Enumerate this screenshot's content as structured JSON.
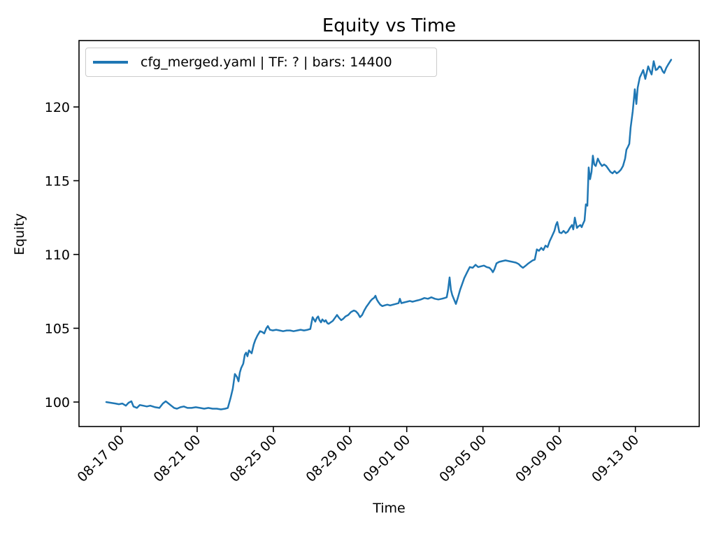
{
  "figure": {
    "title": "Equity vs Time",
    "background": "#ffffff"
  },
  "legend": {
    "label": "cfg_merged.yaml | TF: ? | bars: 14400",
    "line_color": "#1f77b4",
    "position": "upper left"
  },
  "chart_data": {
    "type": "line",
    "title": "Equity vs Time",
    "xlabel": "Time",
    "ylabel": "Equity",
    "grid": false,
    "legend_position": "upper left",
    "x_unit": "days since 08-17 00:00",
    "x_range": [
      -2.2,
      30.35
    ],
    "y_range": [
      98.34,
      124.5
    ],
    "x_ticks": [
      {
        "t": 0,
        "label": "08-17 00"
      },
      {
        "t": 4,
        "label": "08-21 00"
      },
      {
        "t": 8,
        "label": "08-25 00"
      },
      {
        "t": 12,
        "label": "08-29 00"
      },
      {
        "t": 15,
        "label": "09-01 00"
      },
      {
        "t": 19,
        "label": "09-05 00"
      },
      {
        "t": 23,
        "label": "09-09 00"
      },
      {
        "t": 27,
        "label": "09-13 00"
      }
    ],
    "y_ticks": [
      100,
      105,
      110,
      115,
      120
    ],
    "series": [
      {
        "name": "cfg_merged.yaml | TF: ? | bars: 14400",
        "color": "#1f77b4",
        "points": [
          [
            -0.77,
            100.0
          ],
          [
            -0.55,
            99.95
          ],
          [
            -0.29,
            99.9
          ],
          [
            -0.11,
            99.85
          ],
          [
            0.07,
            99.9
          ],
          [
            0.26,
            99.75
          ],
          [
            0.4,
            99.95
          ],
          [
            0.55,
            100.05
          ],
          [
            0.66,
            99.7
          ],
          [
            0.84,
            99.6
          ],
          [
            0.99,
            99.8
          ],
          [
            1.17,
            99.75
          ],
          [
            1.36,
            99.7
          ],
          [
            1.54,
            99.75
          ],
          [
            1.8,
            99.65
          ],
          [
            2.02,
            99.6
          ],
          [
            2.2,
            99.9
          ],
          [
            2.35,
            100.05
          ],
          [
            2.5,
            99.9
          ],
          [
            2.64,
            99.75
          ],
          [
            2.79,
            99.6
          ],
          [
            2.94,
            99.55
          ],
          [
            3.12,
            99.65
          ],
          [
            3.3,
            99.7
          ],
          [
            3.49,
            99.6
          ],
          [
            3.71,
            99.6
          ],
          [
            3.93,
            99.65
          ],
          [
            4.15,
            99.6
          ],
          [
            4.37,
            99.55
          ],
          [
            4.59,
            99.6
          ],
          [
            4.81,
            99.55
          ],
          [
            5.03,
            99.55
          ],
          [
            5.25,
            99.5
          ],
          [
            5.47,
            99.55
          ],
          [
            5.61,
            99.6
          ],
          [
            5.76,
            100.3
          ],
          [
            5.87,
            100.9
          ],
          [
            5.98,
            101.9
          ],
          [
            6.09,
            101.7
          ],
          [
            6.17,
            101.4
          ],
          [
            6.24,
            102.0
          ],
          [
            6.31,
            102.3
          ],
          [
            6.42,
            102.6
          ],
          [
            6.5,
            103.2
          ],
          [
            6.57,
            103.35
          ],
          [
            6.64,
            103.1
          ],
          [
            6.72,
            103.5
          ],
          [
            6.79,
            103.4
          ],
          [
            6.86,
            103.3
          ],
          [
            6.97,
            103.9
          ],
          [
            7.05,
            104.2
          ],
          [
            7.16,
            104.5
          ],
          [
            7.3,
            104.8
          ],
          [
            7.41,
            104.75
          ],
          [
            7.52,
            104.65
          ],
          [
            7.63,
            105.0
          ],
          [
            7.71,
            105.15
          ],
          [
            7.82,
            104.9
          ],
          [
            7.96,
            104.85
          ],
          [
            8.15,
            104.9
          ],
          [
            8.33,
            104.85
          ],
          [
            8.51,
            104.8
          ],
          [
            8.7,
            104.85
          ],
          [
            8.88,
            104.85
          ],
          [
            9.06,
            104.8
          ],
          [
            9.25,
            104.85
          ],
          [
            9.43,
            104.9
          ],
          [
            9.61,
            104.85
          ],
          [
            9.8,
            104.9
          ],
          [
            9.94,
            104.95
          ],
          [
            10.06,
            105.75
          ],
          [
            10.13,
            105.6
          ],
          [
            10.2,
            105.45
          ],
          [
            10.28,
            105.7
          ],
          [
            10.35,
            105.8
          ],
          [
            10.42,
            105.55
          ],
          [
            10.5,
            105.4
          ],
          [
            10.57,
            105.6
          ],
          [
            10.68,
            105.45
          ],
          [
            10.75,
            105.55
          ],
          [
            10.83,
            105.35
          ],
          [
            10.9,
            105.3
          ],
          [
            11.01,
            105.4
          ],
          [
            11.12,
            105.5
          ],
          [
            11.23,
            105.7
          ],
          [
            11.34,
            105.9
          ],
          [
            11.45,
            105.7
          ],
          [
            11.56,
            105.55
          ],
          [
            11.67,
            105.65
          ],
          [
            11.78,
            105.8
          ],
          [
            11.93,
            105.9
          ],
          [
            12.07,
            106.1
          ],
          [
            12.22,
            106.2
          ],
          [
            12.33,
            106.15
          ],
          [
            12.44,
            106.0
          ],
          [
            12.55,
            105.75
          ],
          [
            12.66,
            105.9
          ],
          [
            12.77,
            106.2
          ],
          [
            12.88,
            106.45
          ],
          [
            12.99,
            106.65
          ],
          [
            13.1,
            106.85
          ],
          [
            13.21,
            107.0
          ],
          [
            13.28,
            107.05
          ],
          [
            13.36,
            107.2
          ],
          [
            13.43,
            106.95
          ],
          [
            13.5,
            106.8
          ],
          [
            13.61,
            106.6
          ],
          [
            13.72,
            106.5
          ],
          [
            13.83,
            106.55
          ],
          [
            13.98,
            106.6
          ],
          [
            14.13,
            106.55
          ],
          [
            14.28,
            106.6
          ],
          [
            14.42,
            106.65
          ],
          [
            14.57,
            106.7
          ],
          [
            14.64,
            107.0
          ],
          [
            14.72,
            106.7
          ],
          [
            14.86,
            106.75
          ],
          [
            15.01,
            106.8
          ],
          [
            15.16,
            106.85
          ],
          [
            15.3,
            106.8
          ],
          [
            15.45,
            106.85
          ],
          [
            15.6,
            106.9
          ],
          [
            15.74,
            106.95
          ],
          [
            15.93,
            107.05
          ],
          [
            16.11,
            107.0
          ],
          [
            16.29,
            107.1
          ],
          [
            16.48,
            107.0
          ],
          [
            16.66,
            106.95
          ],
          [
            16.84,
            107.0
          ],
          [
            16.99,
            107.05
          ],
          [
            17.1,
            107.1
          ],
          [
            17.17,
            107.6
          ],
          [
            17.25,
            108.45
          ],
          [
            17.32,
            107.6
          ],
          [
            17.39,
            107.25
          ],
          [
            17.5,
            106.9
          ],
          [
            17.58,
            106.65
          ],
          [
            17.69,
            107.1
          ],
          [
            17.8,
            107.6
          ],
          [
            17.91,
            108.0
          ],
          [
            18.02,
            108.4
          ],
          [
            18.17,
            108.8
          ],
          [
            18.31,
            109.15
          ],
          [
            18.46,
            109.1
          ],
          [
            18.61,
            109.3
          ],
          [
            18.75,
            109.15
          ],
          [
            18.9,
            109.2
          ],
          [
            19.05,
            109.25
          ],
          [
            19.19,
            109.15
          ],
          [
            19.34,
            109.1
          ],
          [
            19.45,
            108.95
          ],
          [
            19.52,
            108.8
          ],
          [
            19.6,
            109.0
          ],
          [
            19.71,
            109.4
          ],
          [
            19.85,
            109.5
          ],
          [
            20.0,
            109.55
          ],
          [
            20.18,
            109.6
          ],
          [
            20.37,
            109.55
          ],
          [
            20.55,
            109.5
          ],
          [
            20.73,
            109.45
          ],
          [
            20.88,
            109.35
          ],
          [
            20.99,
            109.2
          ],
          [
            21.1,
            109.1
          ],
          [
            21.25,
            109.25
          ],
          [
            21.39,
            109.4
          ],
          [
            21.5,
            109.5
          ],
          [
            21.61,
            109.6
          ],
          [
            21.72,
            109.65
          ],
          [
            21.83,
            110.35
          ],
          [
            21.94,
            110.25
          ],
          [
            22.06,
            110.45
          ],
          [
            22.17,
            110.3
          ],
          [
            22.28,
            110.6
          ],
          [
            22.39,
            110.5
          ],
          [
            22.5,
            110.9
          ],
          [
            22.61,
            111.2
          ],
          [
            22.75,
            111.6
          ],
          [
            22.83,
            112.0
          ],
          [
            22.9,
            112.2
          ],
          [
            23.01,
            111.5
          ],
          [
            23.12,
            111.45
          ],
          [
            23.23,
            111.6
          ],
          [
            23.34,
            111.45
          ],
          [
            23.45,
            111.55
          ],
          [
            23.56,
            111.8
          ],
          [
            23.67,
            112.0
          ],
          [
            23.74,
            111.7
          ],
          [
            23.82,
            112.5
          ],
          [
            23.93,
            111.8
          ],
          [
            24.0,
            111.9
          ],
          [
            24.11,
            112.0
          ],
          [
            24.18,
            111.85
          ],
          [
            24.26,
            112.1
          ],
          [
            24.33,
            112.3
          ],
          [
            24.4,
            113.4
          ],
          [
            24.48,
            113.3
          ],
          [
            24.55,
            115.9
          ],
          [
            24.62,
            115.1
          ],
          [
            24.7,
            115.6
          ],
          [
            24.77,
            116.7
          ],
          [
            24.84,
            116.1
          ],
          [
            24.92,
            116.0
          ],
          [
            25.03,
            116.5
          ],
          [
            25.14,
            116.2
          ],
          [
            25.25,
            116.0
          ],
          [
            25.36,
            116.1
          ],
          [
            25.47,
            116.0
          ],
          [
            25.58,
            115.8
          ],
          [
            25.69,
            115.6
          ],
          [
            25.8,
            115.5
          ],
          [
            25.91,
            115.65
          ],
          [
            26.02,
            115.5
          ],
          [
            26.13,
            115.6
          ],
          [
            26.24,
            115.75
          ],
          [
            26.35,
            116.0
          ],
          [
            26.46,
            116.5
          ],
          [
            26.53,
            117.1
          ],
          [
            26.61,
            117.3
          ],
          [
            26.68,
            117.5
          ],
          [
            26.75,
            118.6
          ],
          [
            26.86,
            119.7
          ],
          [
            26.97,
            121.2
          ],
          [
            27.05,
            120.2
          ],
          [
            27.12,
            121.3
          ],
          [
            27.23,
            122.0
          ],
          [
            27.34,
            122.3
          ],
          [
            27.41,
            122.5
          ],
          [
            27.52,
            121.9
          ],
          [
            27.67,
            122.75
          ],
          [
            27.78,
            122.4
          ],
          [
            27.85,
            122.2
          ],
          [
            27.96,
            123.1
          ],
          [
            28.07,
            122.5
          ],
          [
            28.15,
            122.55
          ],
          [
            28.26,
            122.75
          ],
          [
            28.33,
            122.7
          ],
          [
            28.44,
            122.4
          ],
          [
            28.51,
            122.3
          ],
          [
            28.62,
            122.65
          ],
          [
            28.73,
            122.9
          ],
          [
            28.88,
            123.2
          ]
        ]
      }
    ]
  }
}
